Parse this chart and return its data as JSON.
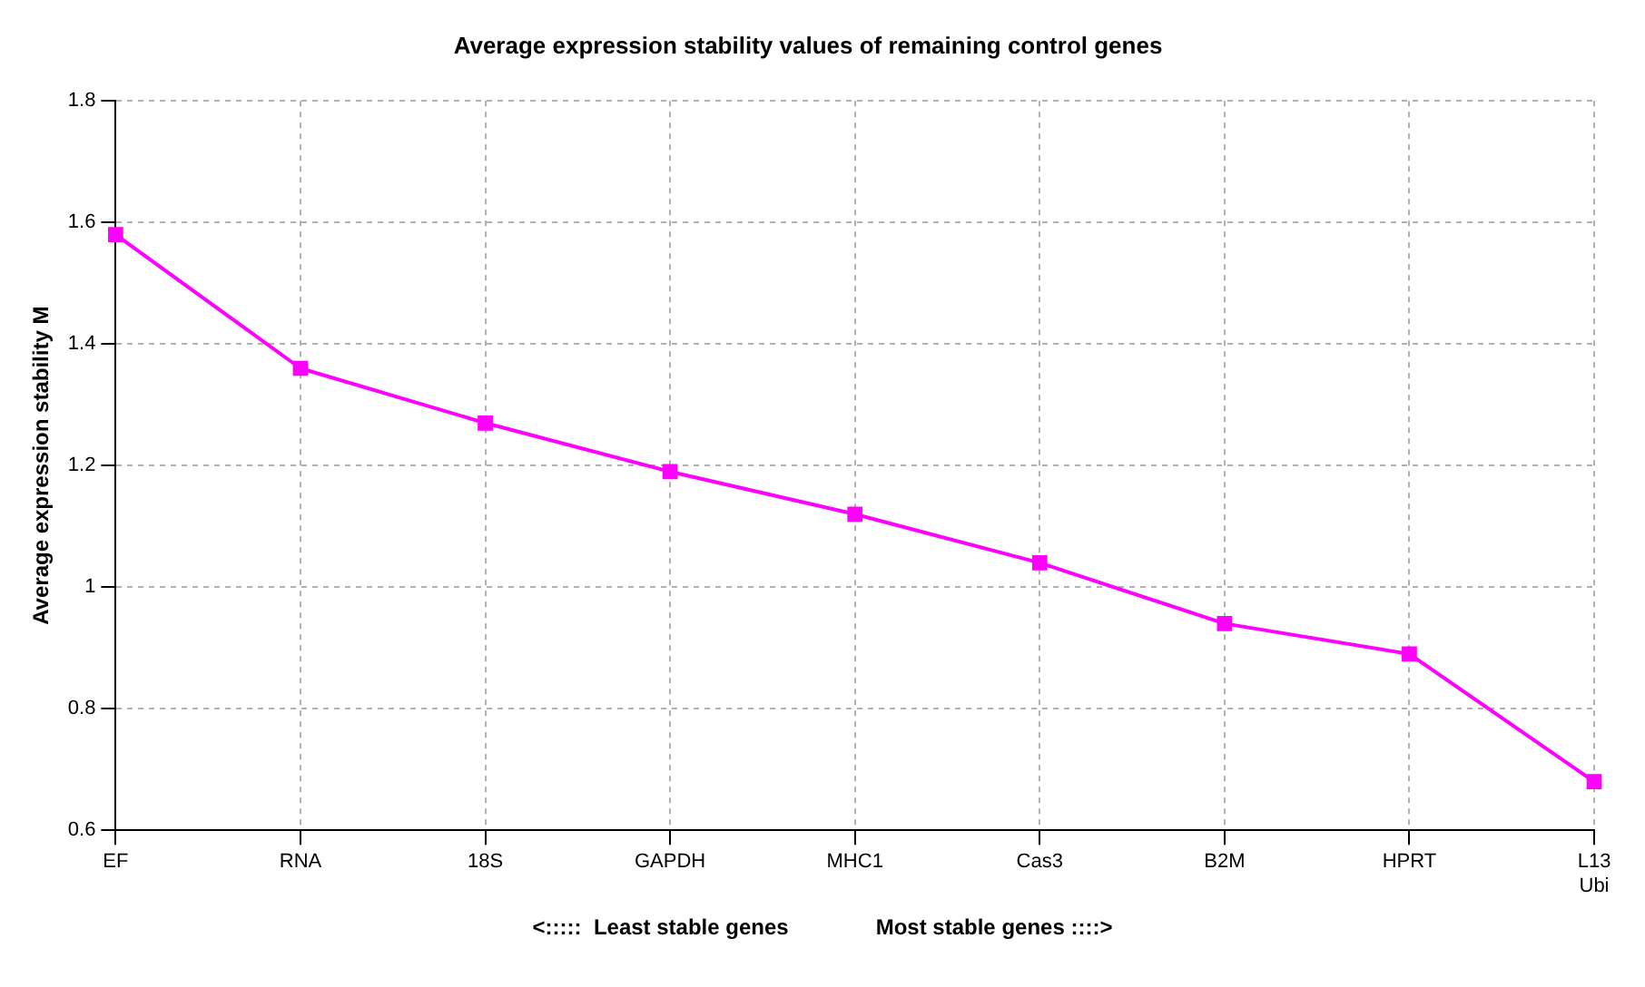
{
  "chart_data": {
    "type": "line",
    "title": "Average expression stability values of remaining control genes",
    "ylabel": "Average expression stability M",
    "categories": [
      "EF",
      "RNA",
      "18S",
      "GAPDH",
      "MHC1",
      "Cas3",
      "B2M",
      "HPRT",
      "L13\nUbi"
    ],
    "series": [
      {
        "color": "#ff00ff",
        "values": [
          1.58,
          1.36,
          1.27,
          1.19,
          1.12,
          1.04,
          0.94,
          0.89,
          0.68
        ]
      }
    ],
    "ylim": [
      0.6,
      1.8
    ],
    "yticks": [
      0.6,
      0.8,
      1,
      1.2,
      1.4,
      1.6,
      1.8
    ],
    "grid": true,
    "legend": false,
    "marker": "square",
    "line_style": "solid",
    "annotations": [
      "<:::::  Least stable genes",
      "Most stable genes ::::>"
    ]
  }
}
